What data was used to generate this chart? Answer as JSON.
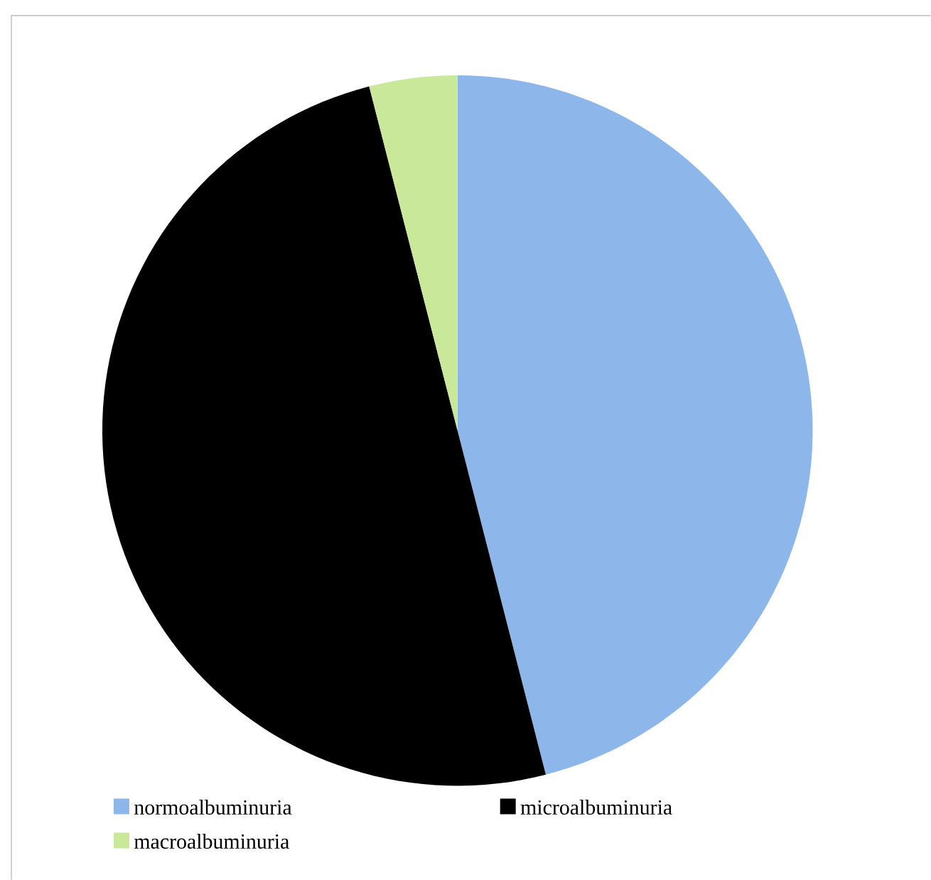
{
  "chart_data": {
    "type": "pie",
    "categories": [
      "normoalbuminuria",
      "microalbuminuria",
      "macroalbuminuria"
    ],
    "values": [
      46,
      50,
      4
    ],
    "colors": [
      "#8db6ea",
      "#000000",
      "#c9e89a"
    ],
    "legend": "bottom"
  }
}
